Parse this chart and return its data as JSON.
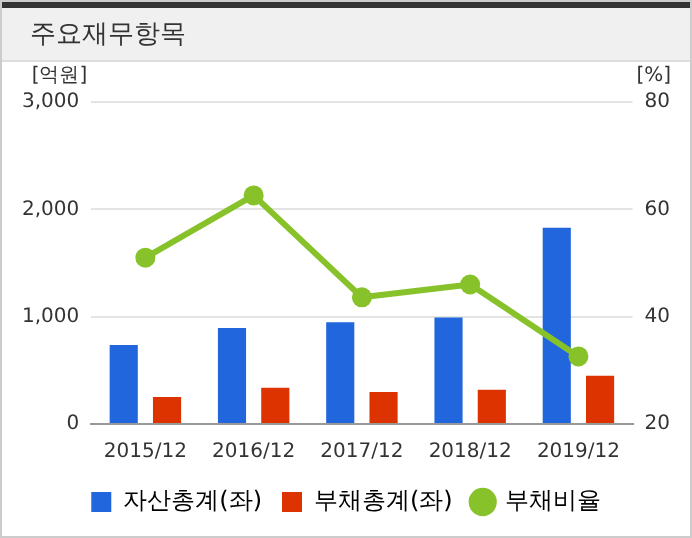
{
  "chart_data": {
    "type": "bar",
    "title": "주요재무항목",
    "ylabel": "[억원]",
    "y2label": "[%]",
    "categories": [
      "2015/12",
      "2016/12",
      "2017/12",
      "2018/12",
      "2019/12"
    ],
    "series": [
      {
        "name": "자산총계(좌)",
        "color": "#2266dd",
        "values": [
          735,
          894,
          947,
          993,
          1828
        ]
      },
      {
        "name": "부채총계(좌)",
        "color": "#dd3300",
        "values": [
          252,
          338,
          298,
          318,
          450
        ]
      },
      {
        "name": "부채비율",
        "type": "line",
        "axis": "y2",
        "color": "#88c22a",
        "marker": "circle",
        "values": [
          51.0,
          62.6,
          43.6,
          46.0,
          32.6
        ]
      }
    ],
    "ylim": [
      0,
      3000
    ],
    "yticks": [
      {
        "value": 0,
        "label": "0"
      },
      {
        "value": 1000,
        "label": "1,000"
      },
      {
        "value": 2000,
        "label": "2,000"
      },
      {
        "value": 3000,
        "label": "3,000"
      }
    ],
    "y2lim": [
      20,
      80
    ],
    "y2ticks": [
      20,
      40,
      60,
      80
    ],
    "grid": "y",
    "legend": "bottom"
  }
}
